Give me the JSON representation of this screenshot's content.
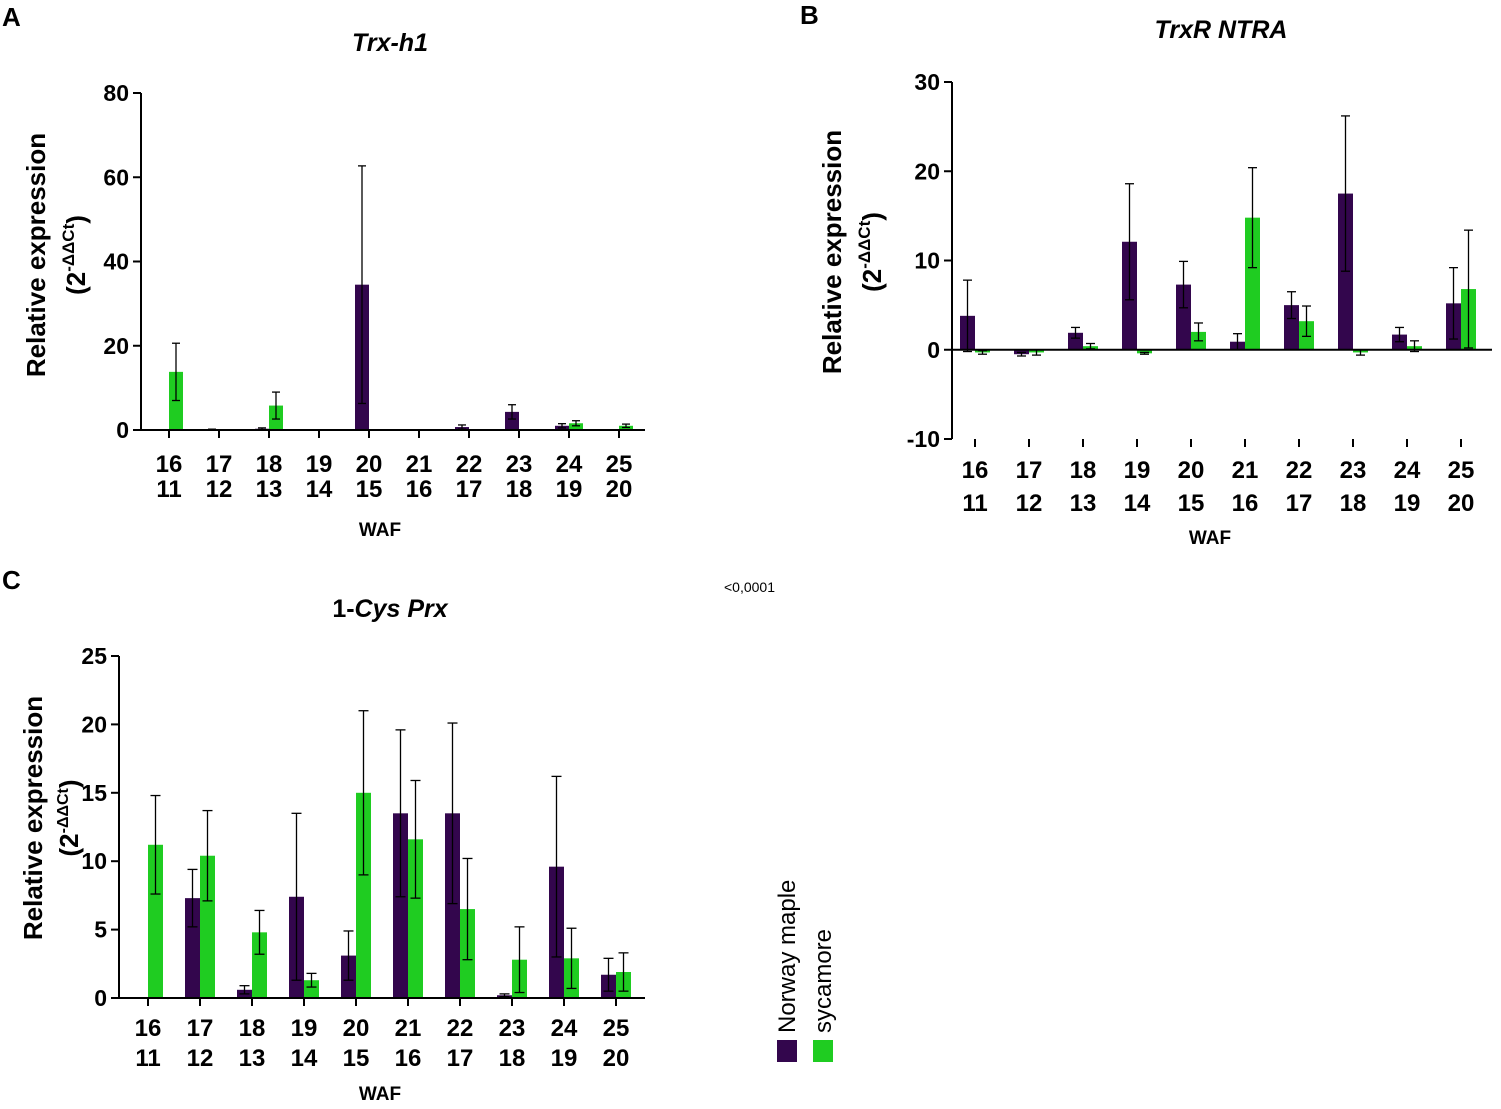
{
  "colors": {
    "norway": "#33064d",
    "sycamore": "#1fcc21",
    "axis": "#000000"
  },
  "note": "<0,0001",
  "legend": {
    "items": [
      "Norway maple",
      "sycamore"
    ]
  },
  "chart_data": [
    {
      "panel": "A",
      "type": "bar",
      "title": "Trx-h1",
      "ylabel_main": "Relative expression",
      "ylabel_sub_base": "(2",
      "ylabel_sub_sup": "-ΔΔCt",
      "ylabel_sub_end": ")",
      "xlabel": "WAF",
      "ylim": [
        0,
        80
      ],
      "yticks": [
        0,
        20,
        40,
        60,
        80
      ],
      "categories": [
        [
          "16",
          "11"
        ],
        [
          "17",
          "12"
        ],
        [
          "18",
          "13"
        ],
        [
          "19",
          "14"
        ],
        [
          "20",
          "15"
        ],
        [
          "21",
          "16"
        ],
        [
          "22",
          "17"
        ],
        [
          "23",
          "18"
        ],
        [
          "24",
          "19"
        ],
        [
          "25",
          "20"
        ]
      ],
      "series": [
        {
          "name": "Norway maple",
          "values": [
            0,
            0.1,
            0.3,
            0,
            34.5,
            0,
            0.7,
            4.3,
            1.0,
            0
          ],
          "errors": [
            0,
            0.1,
            0.2,
            0,
            28.2,
            0,
            0.5,
            1.7,
            0.5,
            0
          ]
        },
        {
          "name": "sycamore",
          "values": [
            13.8,
            0,
            5.8,
            0,
            0,
            0,
            0,
            0,
            1.6,
            1.0
          ],
          "errors": [
            6.8,
            0,
            3.2,
            0,
            0,
            0,
            0,
            0,
            0.6,
            0.4
          ]
        }
      ]
    },
    {
      "panel": "B",
      "type": "bar",
      "title": "TrxR NTRA",
      "ylabel_main": "Relative expression",
      "ylabel_sub_base": "(2",
      "ylabel_sub_sup": "-ΔΔCt",
      "ylabel_sub_end": ")",
      "xlabel": "WAF",
      "ylim": [
        -10,
        30
      ],
      "yticks": [
        -10,
        0,
        10,
        20,
        30
      ],
      "categories": [
        [
          "16",
          "11"
        ],
        [
          "17",
          "12"
        ],
        [
          "18",
          "13"
        ],
        [
          "19",
          "14"
        ],
        [
          "20",
          "15"
        ],
        [
          "21",
          "16"
        ],
        [
          "22",
          "17"
        ],
        [
          "23",
          "18"
        ],
        [
          "24",
          "19"
        ],
        [
          "25",
          "20"
        ]
      ],
      "series": [
        {
          "name": "Norway maple",
          "values": [
            3.8,
            -0.5,
            1.9,
            12.1,
            7.3,
            0.9,
            5.0,
            17.5,
            1.7,
            5.2
          ],
          "errors": [
            4.0,
            0.2,
            0.6,
            6.5,
            2.6,
            0.9,
            1.5,
            8.7,
            0.8,
            4.0
          ]
        },
        {
          "name": "sycamore",
          "values": [
            -0.3,
            -0.3,
            0.4,
            -0.4,
            2.0,
            14.8,
            3.2,
            -0.3,
            0.4,
            6.8
          ],
          "errors": [
            0.2,
            0.3,
            0.3,
            0.1,
            1.0,
            5.6,
            1.7,
            0.3,
            0.6,
            6.6
          ]
        }
      ]
    },
    {
      "panel": "C",
      "type": "bar",
      "title_prefix": "1-",
      "title": "Cys Prx",
      "ylabel_main": "Relative expression",
      "ylabel_sub_base": "(2",
      "ylabel_sub_sup": "-ΔΔCt",
      "ylabel_sub_end": ")",
      "xlabel": "WAF",
      "ylim": [
        0,
        25
      ],
      "yticks": [
        0,
        5,
        10,
        15,
        20,
        25
      ],
      "categories": [
        [
          "16",
          "11"
        ],
        [
          "17",
          "12"
        ],
        [
          "18",
          "13"
        ],
        [
          "19",
          "14"
        ],
        [
          "20",
          "15"
        ],
        [
          "21",
          "16"
        ],
        [
          "22",
          "17"
        ],
        [
          "23",
          "18"
        ],
        [
          "24",
          "19"
        ],
        [
          "25",
          "20"
        ]
      ],
      "series": [
        {
          "name": "Norway maple",
          "values": [
            0,
            7.3,
            0.6,
            7.4,
            3.1,
            13.5,
            13.5,
            0.2,
            9.6,
            1.7
          ],
          "errors": [
            0,
            2.1,
            0.3,
            6.1,
            1.8,
            6.1,
            6.6,
            0.1,
            6.6,
            1.2
          ]
        },
        {
          "name": "sycamore",
          "values": [
            11.2,
            10.4,
            4.8,
            1.3,
            15.0,
            11.6,
            6.5,
            2.8,
            2.9,
            1.9
          ],
          "errors": [
            3.6,
            3.3,
            1.6,
            0.5,
            6.0,
            4.3,
            3.7,
            2.4,
            2.2,
            1.4
          ]
        }
      ]
    }
  ]
}
